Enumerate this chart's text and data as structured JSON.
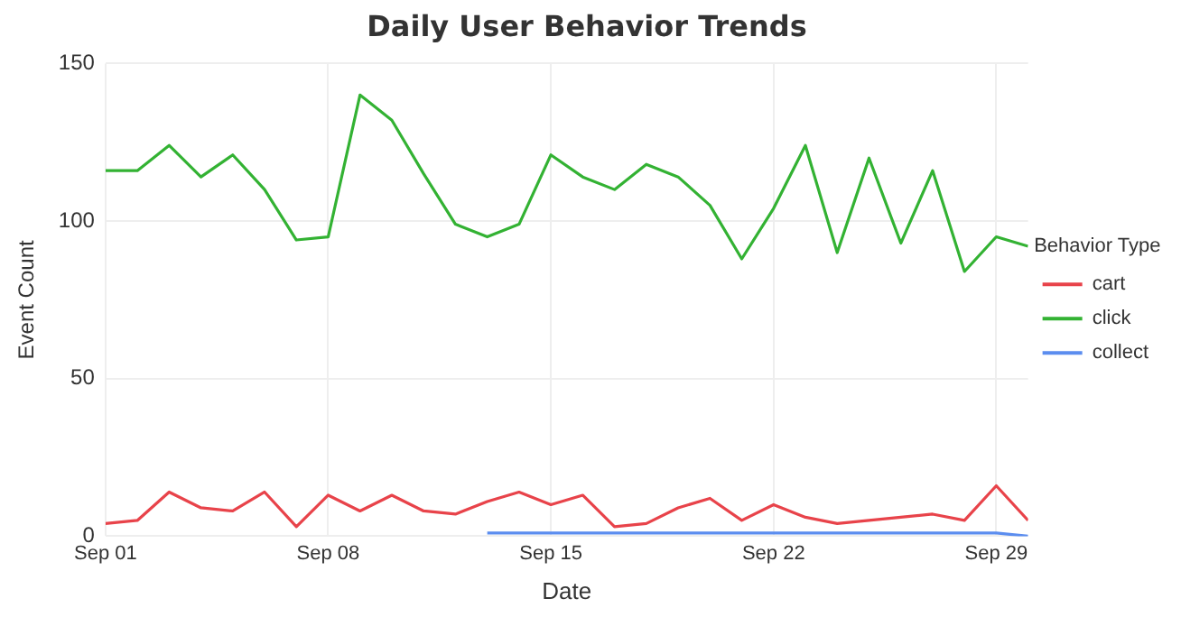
{
  "chart_data": {
    "type": "line",
    "title": "Daily User Behavior Trends",
    "xlabel": "Date",
    "ylabel": "Event Count",
    "legend_title": "Behavior Type",
    "legend": "right",
    "grid": true,
    "marker": "none",
    "line_style": "solid",
    "x": [
      "--09-01",
      "--09-02",
      "--09-03",
      "--09-04",
      "--09-05",
      "--09-06",
      "--09-07",
      "--09-08",
      "--09-09",
      "--09-10",
      "--09-11",
      "--09-12",
      "--09-13",
      "--09-14",
      "--09-15",
      "--09-16",
      "--09-17",
      "--09-18",
      "--09-19",
      "--09-20",
      "--09-21",
      "--09-22",
      "--09-23",
      "--09-24",
      "--09-25",
      "--09-26",
      "--09-27",
      "--09-28",
      "--09-29",
      "--09-30"
    ],
    "xlim": [
      "--09-01",
      "--09-30"
    ],
    "xticks": [
      {
        "value": "--09-01",
        "label": "Sep 01"
      },
      {
        "value": "--09-08",
        "label": "Sep 08"
      },
      {
        "value": "--09-15",
        "label": "Sep 15"
      },
      {
        "value": "--09-22",
        "label": "Sep 22"
      },
      {
        "value": "--09-29",
        "label": "Sep 29"
      }
    ],
    "ylim": [
      0,
      150
    ],
    "yticks": [
      0,
      50,
      100,
      150
    ],
    "series": [
      {
        "name": "cart",
        "color": "#e8434a",
        "values": [
          4,
          5,
          14,
          9,
          8,
          14,
          3,
          13,
          8,
          13,
          8,
          7,
          11,
          14,
          10,
          13,
          3,
          4,
          9,
          12,
          5,
          10,
          6,
          4,
          5,
          6,
          7,
          5,
          16,
          5
        ]
      },
      {
        "name": "click",
        "color": "#33b233",
        "values": [
          116,
          116,
          124,
          114,
          121,
          110,
          94,
          95,
          140,
          132,
          115,
          99,
          95,
          99,
          121,
          114,
          110,
          118,
          114,
          105,
          88,
          104,
          124,
          90,
          120,
          93,
          116,
          84,
          95,
          92
        ]
      },
      {
        "name": "collect",
        "color": "#5b8def",
        "values": [
          null,
          null,
          null,
          null,
          null,
          null,
          null,
          null,
          null,
          null,
          null,
          null,
          1,
          1,
          1,
          1,
          1,
          1,
          1,
          1,
          1,
          1,
          1,
          1,
          1,
          1,
          1,
          1,
          1,
          0
        ]
      }
    ]
  }
}
